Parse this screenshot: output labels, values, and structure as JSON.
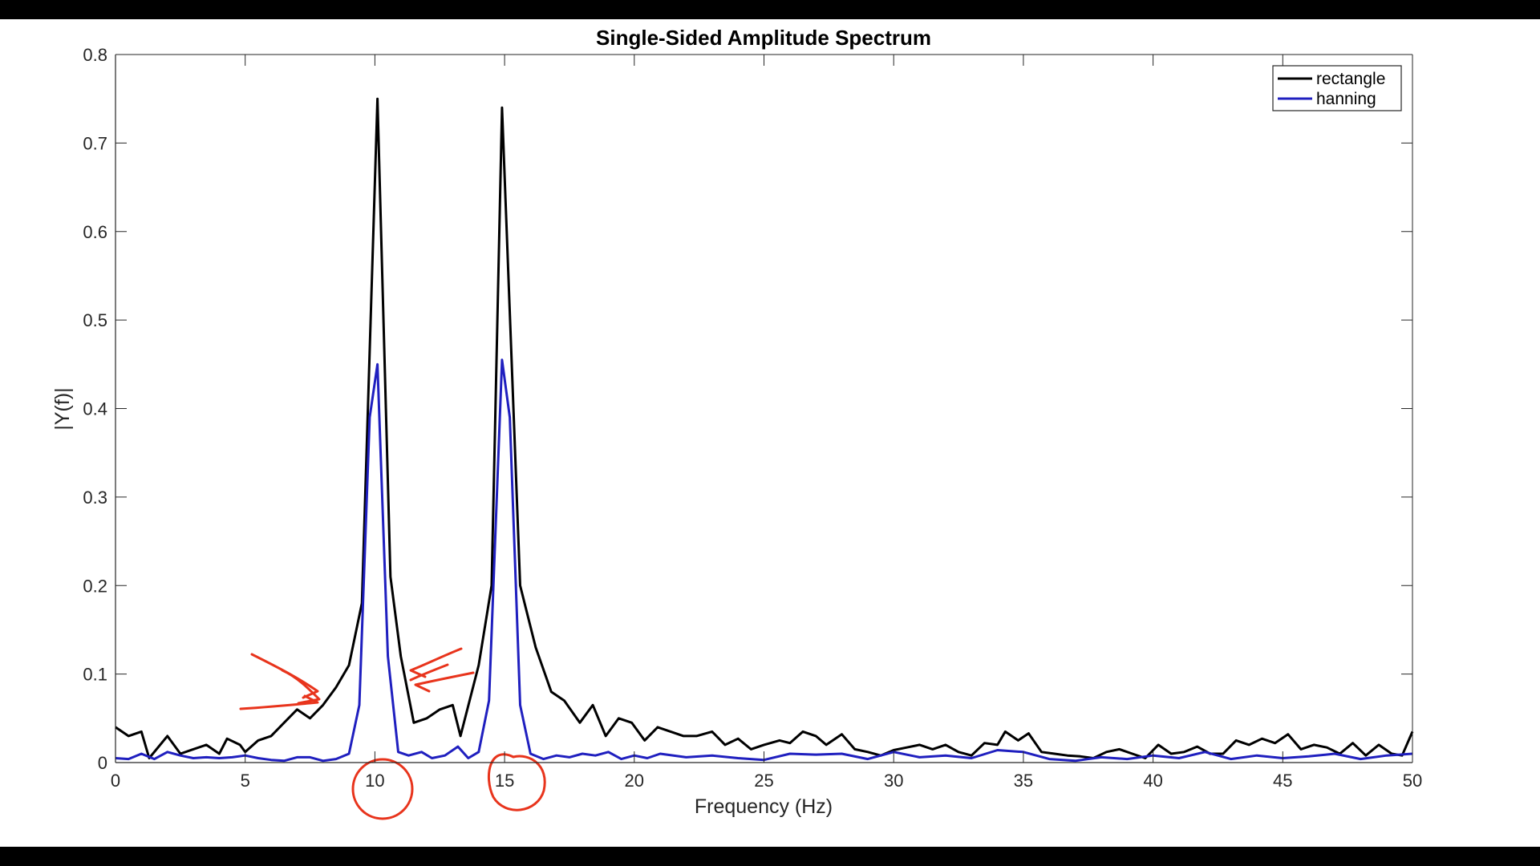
{
  "chart_data": {
    "type": "line",
    "title": "Single-Sided Amplitude Spectrum",
    "xlabel": "Frequency (Hz)",
    "ylabel": "|Y(f)|",
    "xlim": [
      0,
      50
    ],
    "ylim": [
      0,
      0.8
    ],
    "xticks": [
      0,
      5,
      10,
      15,
      20,
      25,
      30,
      35,
      40,
      45,
      50
    ],
    "yticks": [
      0,
      0.1,
      0.2,
      0.3,
      0.4,
      0.5,
      0.6,
      0.7,
      0.8
    ],
    "grid": false,
    "legend_position": "top-right",
    "series": [
      {
        "name": "rectangle",
        "color": "#000000",
        "points": [
          [
            0,
            0.04
          ],
          [
            0.5,
            0.03
          ],
          [
            1.0,
            0.035
          ],
          [
            1.3,
            0.005
          ],
          [
            2.0,
            0.03
          ],
          [
            2.5,
            0.01
          ],
          [
            3.0,
            0.015
          ],
          [
            3.5,
            0.02
          ],
          [
            4.0,
            0.01
          ],
          [
            4.3,
            0.027
          ],
          [
            4.8,
            0.02
          ],
          [
            5.0,
            0.012
          ],
          [
            5.5,
            0.025
          ],
          [
            6.0,
            0.03
          ],
          [
            6.5,
            0.045
          ],
          [
            7.0,
            0.06
          ],
          [
            7.5,
            0.05
          ],
          [
            8.0,
            0.065
          ],
          [
            8.5,
            0.085
          ],
          [
            9.0,
            0.11
          ],
          [
            9.5,
            0.18
          ],
          [
            10.1,
            0.75
          ],
          [
            10.6,
            0.21
          ],
          [
            11.0,
            0.12
          ],
          [
            11.5,
            0.045
          ],
          [
            12.0,
            0.05
          ],
          [
            12.5,
            0.06
          ],
          [
            13.0,
            0.065
          ],
          [
            13.3,
            0.03
          ],
          [
            14.0,
            0.11
          ],
          [
            14.5,
            0.2
          ],
          [
            14.9,
            0.74
          ],
          [
            15.6,
            0.2
          ],
          [
            16.2,
            0.13
          ],
          [
            16.8,
            0.08
          ],
          [
            17.3,
            0.07
          ],
          [
            17.9,
            0.045
          ],
          [
            18.4,
            0.065
          ],
          [
            18.9,
            0.03
          ],
          [
            19.4,
            0.05
          ],
          [
            19.9,
            0.045
          ],
          [
            20.4,
            0.025
          ],
          [
            20.9,
            0.04
          ],
          [
            21.4,
            0.035
          ],
          [
            21.9,
            0.03
          ],
          [
            22.4,
            0.03
          ],
          [
            23.0,
            0.035
          ],
          [
            23.5,
            0.02
          ],
          [
            24.0,
            0.027
          ],
          [
            24.5,
            0.015
          ],
          [
            25.0,
            0.02
          ],
          [
            25.6,
            0.025
          ],
          [
            26.0,
            0.022
          ],
          [
            26.5,
            0.035
          ],
          [
            27.0,
            0.03
          ],
          [
            27.4,
            0.02
          ],
          [
            28.0,
            0.032
          ],
          [
            28.5,
            0.015
          ],
          [
            29.0,
            0.012
          ],
          [
            29.5,
            0.008
          ],
          [
            30.0,
            0.014
          ],
          [
            30.5,
            0.017
          ],
          [
            31.0,
            0.02
          ],
          [
            31.5,
            0.015
          ],
          [
            32.0,
            0.02
          ],
          [
            32.5,
            0.012
          ],
          [
            33.0,
            0.008
          ],
          [
            33.5,
            0.022
          ],
          [
            34.0,
            0.02
          ],
          [
            34.3,
            0.035
          ],
          [
            34.8,
            0.025
          ],
          [
            35.2,
            0.033
          ],
          [
            35.7,
            0.012
          ],
          [
            36.2,
            0.01
          ],
          [
            36.7,
            0.008
          ],
          [
            37.2,
            0.007
          ],
          [
            37.7,
            0.005
          ],
          [
            38.2,
            0.012
          ],
          [
            38.7,
            0.015
          ],
          [
            39.2,
            0.01
          ],
          [
            39.7,
            0.005
          ],
          [
            40.2,
            0.02
          ],
          [
            40.7,
            0.01
          ],
          [
            41.2,
            0.012
          ],
          [
            41.7,
            0.018
          ],
          [
            42.2,
            0.01
          ],
          [
            42.7,
            0.01
          ],
          [
            43.2,
            0.025
          ],
          [
            43.7,
            0.02
          ],
          [
            44.2,
            0.027
          ],
          [
            44.7,
            0.022
          ],
          [
            45.2,
            0.032
          ],
          [
            45.7,
            0.015
          ],
          [
            46.2,
            0.02
          ],
          [
            46.7,
            0.017
          ],
          [
            47.2,
            0.01
          ],
          [
            47.7,
            0.022
          ],
          [
            48.2,
            0.008
          ],
          [
            48.7,
            0.02
          ],
          [
            49.2,
            0.01
          ],
          [
            49.6,
            0.008
          ],
          [
            50.0,
            0.035
          ]
        ]
      },
      {
        "name": "hanning",
        "color": "#1f1fbf",
        "points": [
          [
            0,
            0.005
          ],
          [
            0.5,
            0.004
          ],
          [
            1.0,
            0.01
          ],
          [
            1.5,
            0.004
          ],
          [
            2.0,
            0.012
          ],
          [
            2.5,
            0.008
          ],
          [
            3.0,
            0.005
          ],
          [
            3.5,
            0.006
          ],
          [
            4.0,
            0.005
          ],
          [
            4.5,
            0.006
          ],
          [
            5.0,
            0.008
          ],
          [
            5.5,
            0.005
          ],
          [
            6.0,
            0.003
          ],
          [
            6.5,
            0.002
          ],
          [
            7.0,
            0.006
          ],
          [
            7.5,
            0.006
          ],
          [
            8.0,
            0.002
          ],
          [
            8.5,
            0.004
          ],
          [
            9.0,
            0.01
          ],
          [
            9.4,
            0.065
          ],
          [
            9.8,
            0.39
          ],
          [
            10.1,
            0.45
          ],
          [
            10.5,
            0.12
          ],
          [
            10.9,
            0.012
          ],
          [
            11.3,
            0.008
          ],
          [
            11.8,
            0.012
          ],
          [
            12.2,
            0.005
          ],
          [
            12.7,
            0.008
          ],
          [
            13.2,
            0.018
          ],
          [
            13.6,
            0.005
          ],
          [
            14.0,
            0.012
          ],
          [
            14.4,
            0.07
          ],
          [
            14.9,
            0.455
          ],
          [
            15.2,
            0.39
          ],
          [
            15.6,
            0.065
          ],
          [
            16.0,
            0.01
          ],
          [
            16.5,
            0.004
          ],
          [
            17.0,
            0.008
          ],
          [
            17.5,
            0.006
          ],
          [
            18.0,
            0.01
          ],
          [
            18.5,
            0.008
          ],
          [
            19.0,
            0.012
          ],
          [
            19.5,
            0.004
          ],
          [
            20.0,
            0.008
          ],
          [
            20.5,
            0.005
          ],
          [
            21.0,
            0.01
          ],
          [
            22.0,
            0.006
          ],
          [
            23.0,
            0.008
          ],
          [
            24.0,
            0.005
          ],
          [
            25.0,
            0.003
          ],
          [
            26.0,
            0.01
          ],
          [
            27.0,
            0.009
          ],
          [
            28.0,
            0.01
          ],
          [
            29.0,
            0.004
          ],
          [
            30.0,
            0.012
          ],
          [
            31.0,
            0.006
          ],
          [
            32.0,
            0.008
          ],
          [
            33.0,
            0.005
          ],
          [
            34.0,
            0.014
          ],
          [
            35.0,
            0.012
          ],
          [
            36.0,
            0.004
          ],
          [
            37.0,
            0.002
          ],
          [
            38.0,
            0.006
          ],
          [
            39.0,
            0.004
          ],
          [
            40.0,
            0.008
          ],
          [
            41.0,
            0.005
          ],
          [
            42.0,
            0.012
          ],
          [
            43.0,
            0.004
          ],
          [
            44.0,
            0.008
          ],
          [
            45.0,
            0.005
          ],
          [
            46.0,
            0.007
          ],
          [
            47.0,
            0.01
          ],
          [
            48.0,
            0.004
          ],
          [
            49.0,
            0.008
          ],
          [
            50.0,
            0.01
          ]
        ]
      }
    ]
  }
}
